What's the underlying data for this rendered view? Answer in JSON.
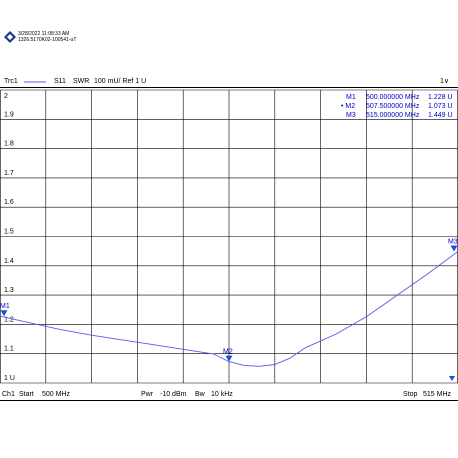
{
  "header": {
    "timestamp": "3/28/2022 11:08:33 AM",
    "instrument_id": "1326.5170K02-100541-uT",
    "trace_name": "Trc1",
    "measurement": "S11",
    "format": "SWR",
    "scale": "100 mU/ Ref 1 U",
    "channel_indicator": "1∨"
  },
  "footer": {
    "channel": "Ch1",
    "start_label": "Start",
    "start_value": "500 MHz",
    "power_label": "Pwr",
    "power_value": "-10 dBm",
    "bw_label": "Bw",
    "bw_value": "10 kHz",
    "stop_label": "Stop",
    "stop_value": "515 MHz"
  },
  "markers": [
    {
      "name": "M1",
      "active": false,
      "freq": "500.000000",
      "freq_unit": "MHz",
      "value": "1.228",
      "unit": "U"
    },
    {
      "name": "M2",
      "active": true,
      "freq": "507.500000",
      "freq_unit": "MHz",
      "value": "1.073",
      "unit": "U"
    },
    {
      "name": "M3",
      "active": false,
      "freq": "515.000000",
      "freq_unit": "MHz",
      "value": "1.449",
      "unit": "U"
    }
  ],
  "colors": {
    "trace": "#5a5af0",
    "marker": "#1e4fd8",
    "marker_text": "#0000c0",
    "grid": "#000000"
  },
  "chart_data": {
    "type": "line",
    "title": "",
    "xlabel": "",
    "ylabel": "",
    "xlim": [
      500,
      515
    ],
    "ylim": [
      1.0,
      2.0
    ],
    "grid": true,
    "x_unit": "MHz",
    "yticks": [
      "2",
      "1.9",
      "1.8",
      "1.7",
      "1.6",
      "1.5",
      "1.4",
      "1.3",
      "1.2",
      "1.1",
      "1 U"
    ],
    "series": [
      {
        "x": [
          500.0,
          501.0,
          502.0,
          503.0,
          504.0,
          505.0,
          506.0,
          507.0,
          507.5,
          508.0,
          508.5,
          509.0,
          509.5,
          510.0,
          511.0,
          512.0,
          513.0,
          514.0,
          515.0
        ],
        "y": [
          1.228,
          1.205,
          1.182,
          1.163,
          1.147,
          1.131,
          1.115,
          1.099,
          1.073,
          1.06,
          1.057,
          1.063,
          1.085,
          1.12,
          1.167,
          1.226,
          1.299,
          1.372,
          1.449
        ]
      }
    ],
    "marker_points": [
      {
        "label": "M1",
        "x": 500.0,
        "y": 1.228
      },
      {
        "label": "M2",
        "x": 507.5,
        "y": 1.073
      },
      {
        "label": "M3",
        "x": 515.0,
        "y": 1.449
      }
    ]
  }
}
